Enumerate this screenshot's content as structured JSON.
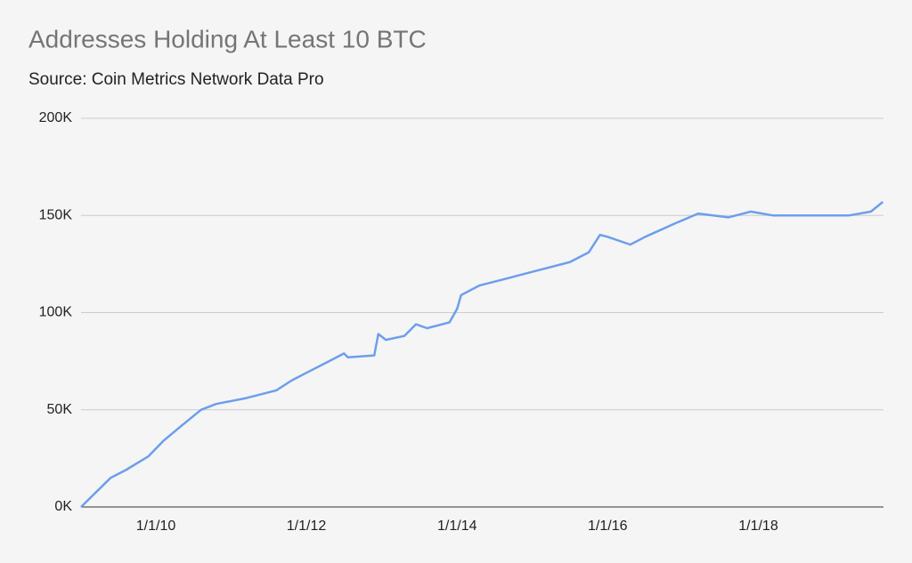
{
  "chart_data": {
    "type": "line",
    "title": "Addresses Holding At Least 10 BTC",
    "subtitle": "Source: Coin Metrics Network Data Pro",
    "x": [
      "2009-01-03",
      "2009-05-27",
      "2009-08-08",
      "2009-11-25",
      "2010-02-06",
      "2010-05-08",
      "2010-08-08",
      "2010-10-20",
      "2011-03-15",
      "2011-08-08",
      "2011-10-20",
      "2012-01-01",
      "2012-04-20",
      "2012-07-01",
      "2012-07-20",
      "2012-11-25",
      "2012-12-15",
      "2013-01-20",
      "2013-04-20",
      "2013-06-15",
      "2013-08-08",
      "2013-11-25",
      "2014-01-01",
      "2014-01-20",
      "2014-04-20",
      "2014-08-08",
      "2015-01-01",
      "2015-07-01",
      "2015-10-01",
      "2015-11-25",
      "2016-01-01",
      "2016-04-20",
      "2016-07-01",
      "2016-11-25",
      "2017-03-15",
      "2017-08-08",
      "2017-11-25",
      "2018-03-15",
      "2018-10-20",
      "2019-03-15",
      "2019-07-01",
      "2019-08-28"
    ],
    "series": [
      {
        "name": "Addresses",
        "color": "#6d9eeb",
        "values": [
          0,
          15000,
          19000,
          26000,
          34000,
          42000,
          50000,
          53000,
          56000,
          60000,
          65000,
          69000,
          75000,
          79000,
          77000,
          78000,
          89000,
          86000,
          88000,
          94000,
          92000,
          95000,
          102000,
          109000,
          114000,
          117000,
          121000,
          126000,
          131000,
          140000,
          139000,
          135000,
          139000,
          146000,
          151000,
          149000,
          152000,
          150000,
          150000,
          150000,
          152000,
          157000
        ]
      }
    ],
    "xlim": [
      "2009-01-03",
      "2019-08-31"
    ],
    "xticks": [
      {
        "value": "2010-01-01",
        "label": "1/1/10"
      },
      {
        "value": "2012-01-01",
        "label": "1/1/12"
      },
      {
        "value": "2014-01-01",
        "label": "1/1/14"
      },
      {
        "value": "2016-01-01",
        "label": "1/1/16"
      },
      {
        "value": "2018-01-01",
        "label": "1/1/18"
      }
    ],
    "ylim": [
      0,
      200000
    ],
    "yticks": [
      {
        "value": 0,
        "label": "0K"
      },
      {
        "value": 50000,
        "label": "50K"
      },
      {
        "value": 100000,
        "label": "100K"
      },
      {
        "value": 150000,
        "label": "150K"
      },
      {
        "value": 200000,
        "label": "200K"
      }
    ],
    "grid": true
  }
}
